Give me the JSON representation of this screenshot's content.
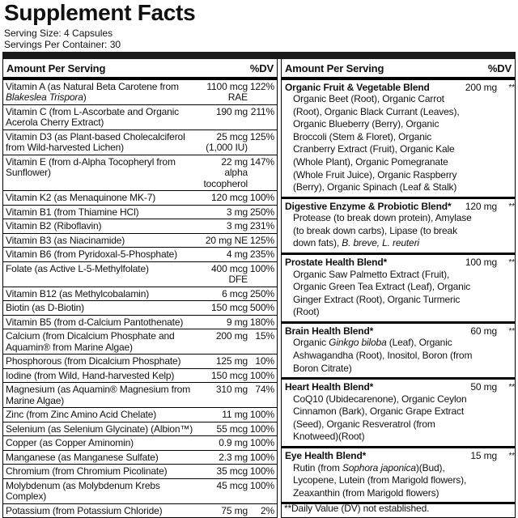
{
  "header": {
    "title": "Supplement Facts",
    "serving_size": "Serving Size: 4 Capsules",
    "servings_per_container": "Servings Per Container: 30"
  },
  "left_table": {
    "header": [
      "Amount Per Serving",
      "%DV"
    ],
    "rows": [
      {
        "name": [
          "Vitamin A (as Natural Beta Carotene from ",
          "Blakeslea Trispora",
          ")"
        ],
        "amount": "1100 mcg RAE",
        "dv": "122%"
      },
      {
        "name": [
          "Vitamin C (from L-Ascorbate and Organic Acerola Cherry Extract)"
        ],
        "amount": "190 mg",
        "dv": "211%"
      },
      {
        "name": [
          "Vitamin D3 (as Plant-based Cholecalciferol from Wild-harvested Lichen)"
        ],
        "amount": "25 mcg (1,000 IU)",
        "dv": "125%"
      },
      {
        "name": [
          "Vitamin E (from d-Alpha Tocopheryl from Sunflower)"
        ],
        "amount": "22 mg alpha tocopherol",
        "dv": "147%"
      },
      {
        "name": [
          "Vitamin K2 (as Menaquinone MK-7)"
        ],
        "amount": "120 mcg",
        "dv": "100%"
      },
      {
        "name": [
          "Vitamin B1 (from Thiamine HCl)"
        ],
        "amount": "3 mg",
        "dv": "250%"
      },
      {
        "name": [
          "Vitamin B2 (Riboflavin)"
        ],
        "amount": "3 mg",
        "dv": "231%"
      },
      {
        "name": [
          "Vitamin B3 (as Niacinamide)"
        ],
        "amount": "20 mg NE",
        "dv": "125%"
      },
      {
        "name": [
          "Vitamin B6 (from Pyridoxal-5-Phosphate)"
        ],
        "amount": "4 mg",
        "dv": "235%"
      },
      {
        "name": [
          "Folate (as Active L-5-Methylfolate)"
        ],
        "amount": "400 mcg DFE",
        "dv": "100%"
      },
      {
        "name": [
          "Vitamin B12 (as Methylcobalamin)"
        ],
        "amount": "6 mcg",
        "dv": "250%"
      },
      {
        "name": [
          "Biotin (as D-Biotin)"
        ],
        "amount": "150 mcg",
        "dv": "500%"
      },
      {
        "name": [
          "Vitamin B5 (from d-Calcium Pantothenate)"
        ],
        "amount": "9 mg",
        "dv": "180%"
      },
      {
        "name": [
          "Calcium (from Dicalcium Phosphate and Aquamin® from Marine Algae)"
        ],
        "amount": "200 mg",
        "dv": "15%"
      },
      {
        "name": [
          "Phosphorous (from Dicalcium Phosphate)"
        ],
        "amount": "125 mg",
        "dv": "10%"
      },
      {
        "name": [
          "Iodine (from Wild, Hand-harvested Kelp)"
        ],
        "amount": "150 mcg",
        "dv": "100%"
      },
      {
        "name": [
          "Magnesium (as Aquamin® Magnesium from Marine Algae)"
        ],
        "amount": "310 mg",
        "dv": "74%"
      },
      {
        "name": [
          "Zinc (from Zinc Amino Acid Chelate)"
        ],
        "amount": "11 mg",
        "dv": "100%"
      },
      {
        "name": [
          "Selenium (as Selenium Glycinate) (Albion™)"
        ],
        "amount": "55 mcg",
        "dv": "100%"
      },
      {
        "name": [
          "Copper (as Copper Aminomin)"
        ],
        "amount": "0.9 mg",
        "dv": "100%"
      },
      {
        "name": [
          "Manganese (as Manganese Sulfate)"
        ],
        "amount": "2.3 mg",
        "dv": "100%"
      },
      {
        "name": [
          "Chromium (from Chromium Picolinate)"
        ],
        "amount": "35 mcg",
        "dv": "100%"
      },
      {
        "name": [
          "Molybdenum (as Molybdenum Krebs Complex)"
        ],
        "amount": "45 mcg",
        "dv": "100%"
      },
      {
        "name": [
          "Potassium (from Potassium Chloride)"
        ],
        "amount": "75 mg",
        "dv": "2%"
      }
    ]
  },
  "right_table": {
    "header": [
      "Amount Per Serving",
      "%DV"
    ],
    "blends": [
      {
        "name": "Organic Fruit & Vegetable Blend",
        "amount": "200 mg",
        "dv": "**",
        "description": [
          "Organic Beet (Root), Organic Carrot (Root), Organic Black Currant (Leaves), Organic Blueberry (Berry), Organic Broccoli (Stem & Floret), Organic Cranberry Extract (Fruit), Organic Kale (Whole Plant), Organic Pomegranate (Whole Fruit Juice), Organic Raspberry (Berry), Organic Spinach (Leaf & Stalk)"
        ]
      },
      {
        "name": "Digestive Enzyme & Probiotic Blend*",
        "amount": "120 mg",
        "dv": "**",
        "description": [
          "Protease (to break down protein), Amylase (to break down carbs), Lipase (to break down fats), ",
          "B. breve, L. reuteri"
        ]
      },
      {
        "name": "Prostate Health Blend*",
        "amount": "100 mg",
        "dv": "**",
        "description": [
          "Organic Saw Palmetto Extract (Fruit), Organic Green Tea Extract (Leaf), Organic Ginger Extract (Root), Organic Turmeric (Root)"
        ]
      },
      {
        "name": "Brain Health Blend*",
        "amount": "60 mg",
        "dv": "**",
        "description": [
          "Organic ",
          "Ginkgo biloba",
          " (Leaf), Organic Ashwagandha (Root), Inositol, Boron (from Boron Citrate)"
        ]
      },
      {
        "name": "Heart Health Blend*",
        "amount": "50 mg",
        "dv": "**",
        "description": [
          "CoQ10 (Ubidecarenone), Organic Ceylon Cinnamon (Bark), Organic Grape Extract (Seed), Organic Resveratrol (from Knotweed)(Root)"
        ]
      },
      {
        "name": "Eye Health Blend*",
        "amount": "15 mg",
        "dv": "**",
        "description": [
          "Rutin (from ",
          "Sophora japonica",
          ")(Bud), Lycopene, Lutein (from Marigold flowers), Zeaxanthin (from Marigold flowers)"
        ]
      }
    ],
    "footnote": "**Daily Value (DV) not established."
  }
}
